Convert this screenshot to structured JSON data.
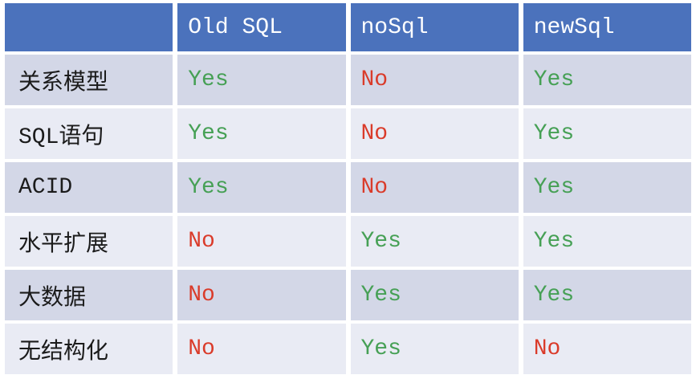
{
  "table": {
    "columns": [
      "",
      "Old SQL",
      "noSql",
      "newSql"
    ],
    "rows": [
      {
        "label": "关系模型",
        "values": [
          "Yes",
          "No",
          "Yes"
        ]
      },
      {
        "label": "SQL语句",
        "values": [
          "Yes",
          "No",
          "Yes"
        ]
      },
      {
        "label": "ACID",
        "values": [
          "Yes",
          "No",
          "Yes"
        ]
      },
      {
        "label": "水平扩展",
        "values": [
          "No",
          "Yes",
          "Yes"
        ]
      },
      {
        "label": "大数据",
        "values": [
          "No",
          "Yes",
          "Yes"
        ]
      },
      {
        "label": "无结构化",
        "values": [
          "No",
          "Yes",
          "No"
        ]
      }
    ],
    "colors": {
      "header_bg": "#4B72BC",
      "header_text": "#FFFFFF",
      "row_band_dark": "#D3D7E7",
      "row_band_light": "#E9EBF4",
      "yes_color": "#46A055",
      "no_color": "#DA3B2A",
      "label_color": "#1B1B1B",
      "gap_color": "#FFFFFF"
    }
  }
}
